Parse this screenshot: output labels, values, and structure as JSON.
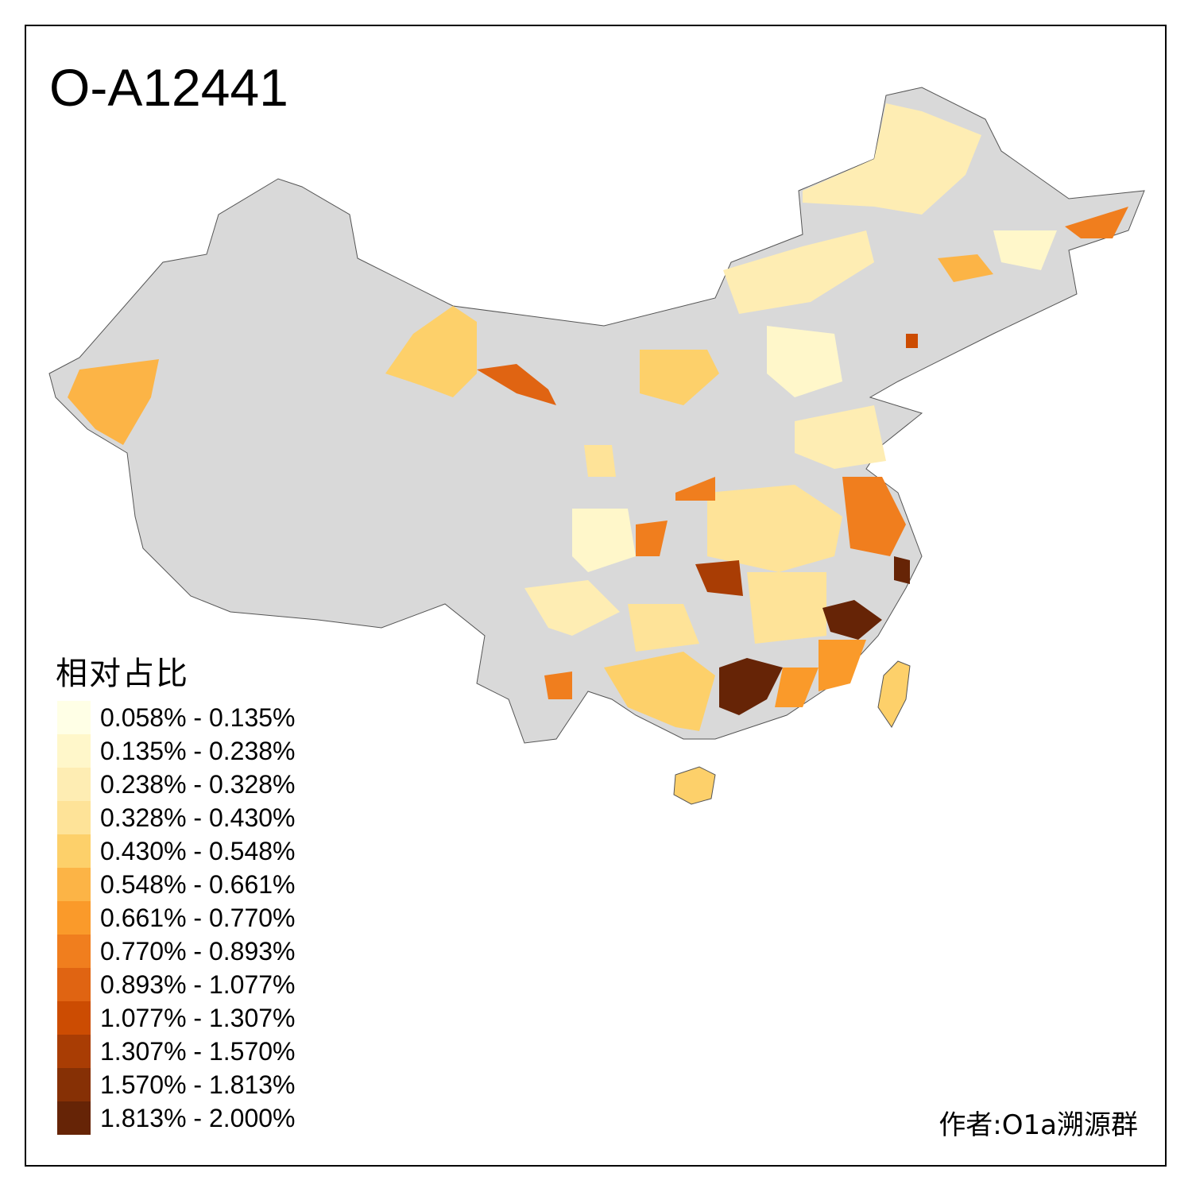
{
  "title": "O-A12441",
  "legend": {
    "title": "相对占比",
    "items": [
      {
        "label": "0.058% - 0.135%",
        "color": "#FFFFE6"
      },
      {
        "label": "0.135% - 0.238%",
        "color": "#FFF7CA"
      },
      {
        "label": "0.238% - 0.328%",
        "color": "#FEEDB3"
      },
      {
        "label": "0.328% - 0.430%",
        "color": "#FEE398"
      },
      {
        "label": "0.430% - 0.548%",
        "color": "#FDD06A"
      },
      {
        "label": "0.548% - 0.661%",
        "color": "#FCB446"
      },
      {
        "label": "0.661% - 0.770%",
        "color": "#FA9A2A"
      },
      {
        "label": "0.770% - 0.893%",
        "color": "#F07E1E"
      },
      {
        "label": "0.893% - 1.077%",
        "color": "#E06412"
      },
      {
        "label": "1.077% - 1.307%",
        "color": "#CC4C02"
      },
      {
        "label": "1.307% - 1.570%",
        "color": "#A93D04"
      },
      {
        "label": "1.570% - 1.813%",
        "color": "#863005"
      },
      {
        "label": "1.813% - 2.000%",
        "color": "#662406"
      }
    ]
  },
  "no_data_color": "#D9D9D9",
  "author": "作者:O1a溯源群"
}
